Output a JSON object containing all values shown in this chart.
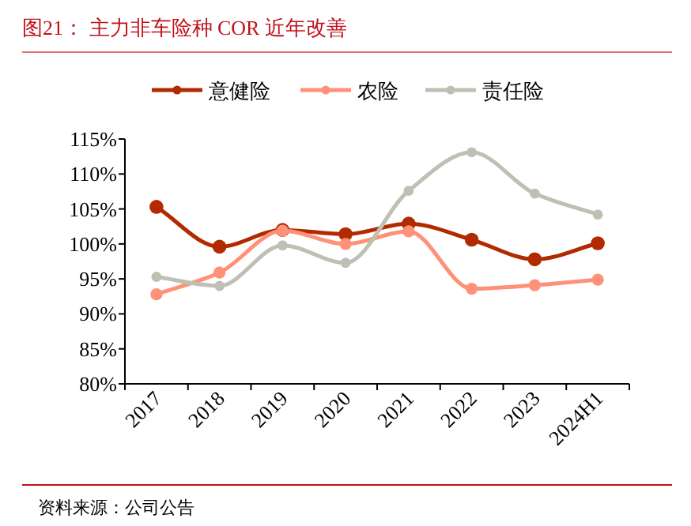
{
  "chart_data": {
    "type": "line",
    "title": "图21：  主力非车险种 COR 近年改善",
    "categories": [
      "2017",
      "2018",
      "2019",
      "2020",
      "2021",
      "2022",
      "2023",
      "2024H1"
    ],
    "series": [
      {
        "name": "意健险",
        "color": "#b22a00",
        "values": [
          105.3,
          99.6,
          102.0,
          101.4,
          102.9,
          100.6,
          97.8,
          100.1
        ]
      },
      {
        "name": "农险",
        "color": "#ff9178",
        "values": [
          92.8,
          95.9,
          101.9,
          100.0,
          101.8,
          93.6,
          94.1,
          94.9
        ]
      },
      {
        "name": "责任险",
        "color": "#bfbfb4",
        "values": [
          95.3,
          94.0,
          99.8,
          97.3,
          107.6,
          113.1,
          107.2,
          104.2
        ]
      }
    ],
    "ylim": [
      80,
      115
    ],
    "yticks": [
      {
        "value": 80,
        "label": "80%"
      },
      {
        "value": 85,
        "label": "85%"
      },
      {
        "value": 90,
        "label": "90%"
      },
      {
        "value": 95,
        "label": "95%"
      },
      {
        "value": 100,
        "label": "100%"
      },
      {
        "value": 105,
        "label": "105%"
      },
      {
        "value": 110,
        "label": "110%"
      },
      {
        "value": 115,
        "label": "115%"
      }
    ],
    "grid": false,
    "legend": "top",
    "marker": "circle",
    "line_style": "solid",
    "annotations": [
      "资料来源：公司公告"
    ]
  }
}
